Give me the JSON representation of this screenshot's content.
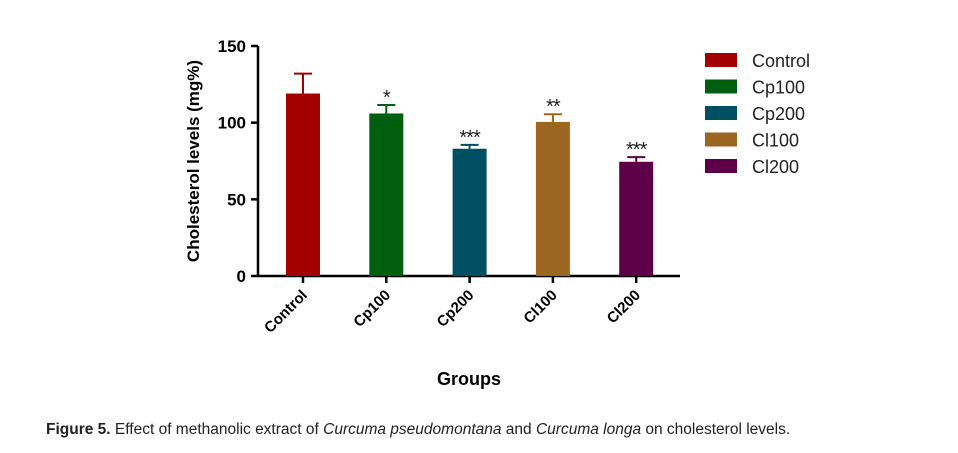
{
  "chart_data": {
    "type": "bar",
    "categories": [
      "Control",
      "Cp100",
      "Cp200",
      "Cl100",
      "Cl200"
    ],
    "values": [
      119,
      106,
      83,
      100.5,
      74.5
    ],
    "error_upper": [
      132,
      111.5,
      85.5,
      105.5,
      77.5
    ],
    "significance": [
      "",
      "*",
      "***",
      "**",
      "***"
    ],
    "colors": [
      "#a30000",
      "#005f0f",
      "#004f63",
      "#9a6620",
      "#5e0048"
    ],
    "xlabel": "Groups",
    "ylabel": "Cholesterol levels (mg%)",
    "ylim": [
      0,
      150
    ],
    "yticks": [
      0,
      50,
      100,
      150
    ],
    "ytick_labels": [
      "0",
      "50",
      "100",
      "150"
    ],
    "legend": [
      "Control",
      "Cp100",
      "Cp200",
      "Cl100",
      "Cl200"
    ],
    "legend_position": "right",
    "grid": false
  },
  "caption": {
    "label": "Figure 5.",
    "text1": " Effect of methanolic extract of ",
    "italic1": "Curcuma pseudomontana",
    "text2": " and ",
    "italic2": "Curcuma longa",
    "text3": " on cholesterol levels."
  }
}
